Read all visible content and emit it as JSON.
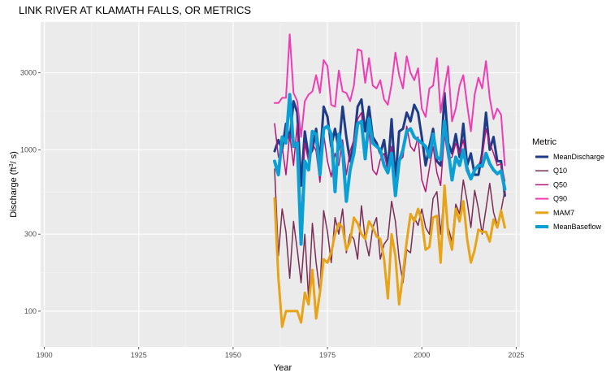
{
  "chart_data": {
    "type": "line",
    "title": "LINK RIVER AT KLAMATH FALLS, OR  METRICS",
    "xlabel": "Year",
    "ylabel_main": "Discharge (ft",
    "ylabel_sup": "3",
    "ylabel_end": "/ s)",
    "xlim": [
      1899,
      2026
    ],
    "ylim": [
      60,
      6200
    ],
    "yscale": "log10",
    "grid": true,
    "legend_position": "right",
    "legend_title": "Metric",
    "x_ticks": [
      1900,
      1925,
      1950,
      1975,
      2000,
      2025
    ],
    "x_minor_ticks": [
      1912.5,
      1937.5,
      1962.5,
      1987.5,
      2012.5
    ],
    "y_ticks": [
      100,
      300,
      1000,
      3000
    ],
    "y_minor_ticks": [
      173.2,
      547.7,
      1732
    ],
    "x": [
      1961,
      1962,
      1963,
      1964,
      1965,
      1966,
      1967,
      1968,
      1969,
      1970,
      1971,
      1972,
      1973,
      1974,
      1975,
      1976,
      1977,
      1978,
      1979,
      1980,
      1981,
      1982,
      1983,
      1984,
      1985,
      1986,
      1987,
      1988,
      1989,
      1990,
      1991,
      1992,
      1993,
      1994,
      1995,
      1996,
      1997,
      1998,
      1999,
      2000,
      2001,
      2002,
      2003,
      2004,
      2005,
      2006,
      2007,
      2008,
      2009,
      2010,
      2011,
      2012,
      2013,
      2014,
      2015,
      2016,
      2017,
      2018,
      2019,
      2020,
      2021,
      2022
    ],
    "series": [
      {
        "name": "MeanDischarge",
        "color": "#1f3c88",
        "width": 3,
        "values": [
          980,
          1150,
          1000,
          1450,
          1150,
          2000,
          1700,
          600,
          1300,
          900,
          1000,
          1350,
          850,
          1850,
          1600,
          1050,
          1350,
          1000,
          1850,
          1200,
          850,
          1100,
          1850,
          2050,
          1300,
          1850,
          1200,
          1100,
          950,
          1150,
          750,
          1550,
          650,
          1300,
          1350,
          1700,
          1500,
          1900,
          1700,
          1200,
          800,
          1050,
          1350,
          850,
          800,
          2250,
          1100,
          950,
          1250,
          900,
          1450,
          800,
          950,
          700,
          700,
          950,
          1700,
          1000,
          1200,
          850,
          850,
          520
        ]
      },
      {
        "name": "Q10",
        "color": "#7b2d55",
        "width": 1.5,
        "values": [
          760,
          220,
          430,
          310,
          160,
          360,
          240,
          150,
          300,
          120,
          350,
          200,
          130,
          420,
          310,
          200,
          380,
          300,
          430,
          230,
          300,
          280,
          210,
          450,
          280,
          220,
          330,
          380,
          210,
          260,
          280,
          480,
          360,
          210,
          150,
          240,
          230,
          380,
          340,
          430,
          330,
          300,
          500,
          550,
          300,
          550,
          330,
          270,
          460,
          400,
          650,
          480,
          330,
          560,
          430,
          300,
          430,
          620,
          410,
          340,
          420,
          560
        ]
      },
      {
        "name": "Q50",
        "color": "#b5147a",
        "width": 1.5,
        "values": [
          1450,
          900,
          1050,
          700,
          1250,
          800,
          1450,
          370,
          1100,
          850,
          1100,
          980,
          630,
          1250,
          850,
          680,
          950,
          800,
          1150,
          700,
          980,
          1150,
          1550,
          1700,
          950,
          1300,
          750,
          700,
          870,
          950,
          750,
          1050,
          620,
          850,
          900,
          1400,
          1050,
          980,
          1200,
          650,
          550,
          770,
          1050,
          720,
          600,
          1250,
          880,
          900,
          1100,
          950,
          1150,
          800,
          680,
          750,
          800,
          900,
          1350,
          1100,
          950,
          800,
          820,
          640
        ]
      },
      {
        "name": "Q90",
        "color": "#f03cb4",
        "width": 2,
        "values": [
          1950,
          1950,
          2100,
          2100,
          5200,
          2250,
          2000,
          1200,
          2000,
          2200,
          2300,
          2900,
          2250,
          3600,
          3300,
          1900,
          1850,
          3100,
          2300,
          2250,
          2000,
          2500,
          4200,
          4100,
          2600,
          3700,
          2500,
          2400,
          2700,
          2050,
          1900,
          2550,
          4000,
          2900,
          2400,
          3800,
          3000,
          2700,
          3200,
          1800,
          1600,
          2400,
          2500,
          3700,
          1700,
          2400,
          3300,
          1500,
          1800,
          2500,
          2900,
          1900,
          1300,
          2200,
          2800,
          2400,
          3550,
          2100,
          1550,
          1800,
          1650,
          800
        ]
      },
      {
        "name": "MAM7",
        "color": "#e8a317",
        "width": 3,
        "values": [
          500,
          160,
          80,
          100,
          100,
          100,
          100,
          85,
          130,
          110,
          180,
          90,
          130,
          210,
          200,
          230,
          300,
          350,
          330,
          240,
          270,
          380,
          350,
          300,
          280,
          360,
          330,
          290,
          280,
          210,
          120,
          300,
          220,
          110,
          170,
          270,
          400,
          360,
          430,
          360,
          240,
          250,
          380,
          390,
          200,
          600,
          300,
          240,
          430,
          360,
          480,
          280,
          200,
          240,
          320,
          310,
          310,
          270,
          370,
          330,
          420,
          330
        ]
      },
      {
        "name": "MeanBaseflow",
        "color": "#0ba0d5",
        "width": 4,
        "values": [
          850,
          700,
          1200,
          1100,
          2200,
          1050,
          1100,
          260,
          850,
          750,
          1300,
          1250,
          700,
          1350,
          1400,
          1250,
          550,
          1250,
          1000,
          480,
          750,
          950,
          1450,
          1500,
          880,
          1550,
          1100,
          1050,
          1000,
          800,
          720,
          950,
          520,
          850,
          1000,
          1300,
          1350,
          1200,
          1150,
          1100,
          1050,
          900,
          1250,
          900,
          870,
          1500,
          1000,
          650,
          900,
          800,
          1000,
          750,
          660,
          750,
          800,
          790,
          950,
          820,
          750,
          710,
          740,
          570
        ]
      }
    ]
  }
}
